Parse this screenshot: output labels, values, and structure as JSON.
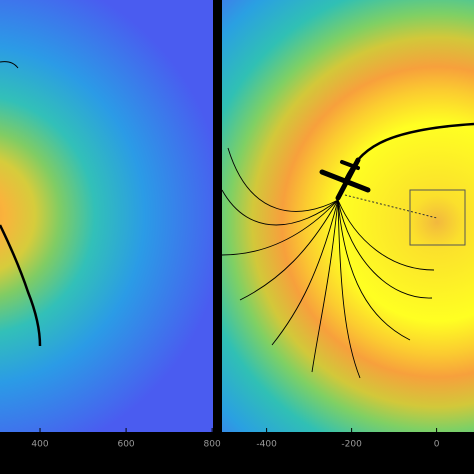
{
  "chart_data": [
    {
      "type": "heatmap",
      "xlim": [
        307,
        802
      ],
      "xticks": [
        400,
        600,
        800
      ]
    },
    {
      "type": "heatmap",
      "xlim": [
        -505,
        88
      ],
      "xticks": [
        -400,
        -200,
        0
      ]
    }
  ]
}
